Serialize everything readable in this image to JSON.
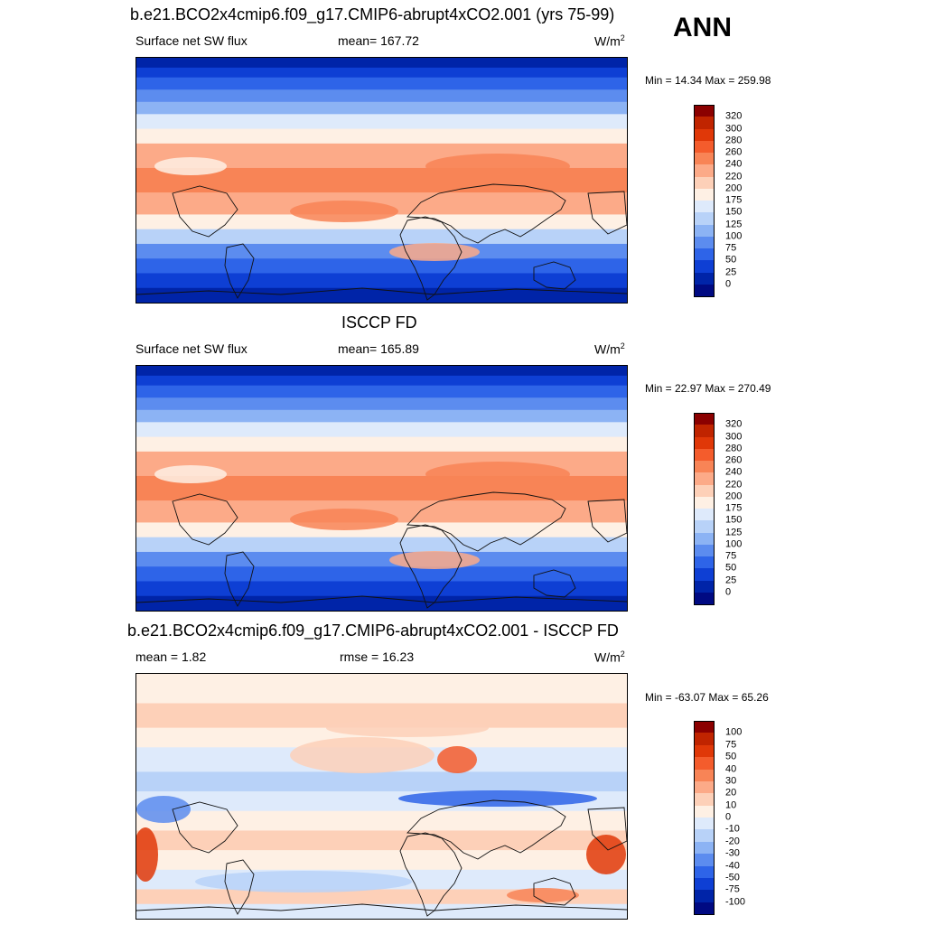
{
  "corner_label": "ANN",
  "chart_data": [
    {
      "type": "heatmap",
      "title": "b.e21.BCO2x4cmip6.f09_g17.CMIP6-abrupt4xCO2.001 (yrs 75-99)",
      "left_label": "Surface net SW flux",
      "center_label": "mean= 167.72",
      "units": "W/m",
      "units_sup": "2",
      "minmax": "Min =  14.34 Max = 259.98",
      "min": 14.34,
      "max": 259.98,
      "colorbar_levels": [
        "320",
        "300",
        "280",
        "260",
        "240",
        "220",
        "200",
        "175",
        "150",
        "125",
        "100",
        "75",
        "50",
        "25",
        "0"
      ],
      "colorbar_colors": [
        "#8b0000",
        "#c02400",
        "#e03808",
        "#f45c2c",
        "#f88456",
        "#fcaa88",
        "#fdd0b8",
        "#fef0e4",
        "#deeafb",
        "#b8d2f8",
        "#8cb3f4",
        "#5c8cef",
        "#2e64e8",
        "#0e3fd4",
        "#0024a8",
        "#000a82"
      ],
      "field": "absolute"
    },
    {
      "type": "heatmap",
      "title": "ISCCP FD",
      "left_label": "Surface net SW flux",
      "center_label": "mean= 165.89",
      "units": "W/m",
      "units_sup": "2",
      "minmax": "Min =  22.97 Max = 270.49",
      "min": 22.97,
      "max": 270.49,
      "colorbar_levels": [
        "320",
        "300",
        "280",
        "260",
        "240",
        "220",
        "200",
        "175",
        "150",
        "125",
        "100",
        "75",
        "50",
        "25",
        "0"
      ],
      "colorbar_colors": [
        "#8b0000",
        "#c02400",
        "#e03808",
        "#f45c2c",
        "#f88456",
        "#fcaa88",
        "#fdd0b8",
        "#fef0e4",
        "#deeafb",
        "#b8d2f8",
        "#8cb3f4",
        "#5c8cef",
        "#2e64e8",
        "#0e3fd4",
        "#0024a8",
        "#000a82"
      ],
      "field": "absolute"
    },
    {
      "type": "heatmap",
      "title": "b.e21.BCO2x4cmip6.f09_g17.CMIP6-abrupt4xCO2.001 - ISCCP FD",
      "left_label": "mean =   1.82",
      "center_label": "rmse =  16.23",
      "units": "W/m",
      "units_sup": "2",
      "minmax": "Min = -63.07 Max =  65.26",
      "min": -63.07,
      "max": 65.26,
      "colorbar_levels": [
        "100",
        "75",
        "50",
        "40",
        "30",
        "20",
        "10",
        "0",
        "-10",
        "-20",
        "-30",
        "-40",
        "-50",
        "-75",
        "-100"
      ],
      "colorbar_colors": [
        "#8b0000",
        "#c02400",
        "#e03808",
        "#f45c2c",
        "#f88456",
        "#fcaa88",
        "#fdd0b8",
        "#fef0e4",
        "#deeafb",
        "#b8d2f8",
        "#8cb3f4",
        "#5c8cef",
        "#2e64e8",
        "#0e3fd4",
        "#0024a8",
        "#000a82"
      ],
      "field": "difference"
    }
  ]
}
